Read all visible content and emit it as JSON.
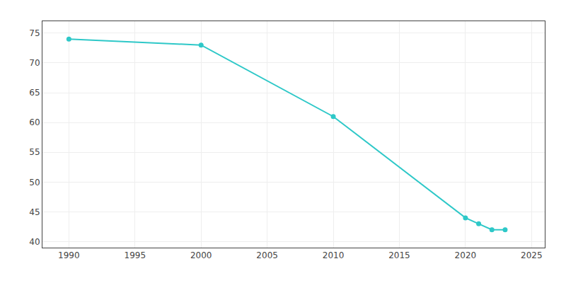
{
  "chart_data": {
    "type": "line",
    "x": [
      1990,
      2000,
      2010,
      2020,
      2021,
      2022,
      2023
    ],
    "values": [
      74,
      73,
      61,
      44,
      43,
      42,
      42
    ],
    "color": "#2ec8c8",
    "marker": "circle",
    "xlim": [
      1988,
      2026
    ],
    "ylim": [
      39,
      77
    ],
    "xticks": [
      1990,
      1995,
      2000,
      2005,
      2010,
      2015,
      2020,
      2025
    ],
    "yticks": [
      40,
      45,
      50,
      55,
      60,
      65,
      70,
      75
    ],
    "grid": true
  }
}
